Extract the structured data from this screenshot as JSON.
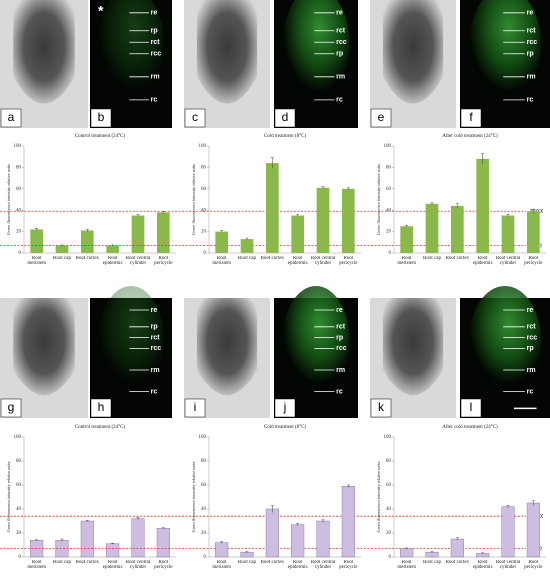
{
  "panels": [
    {
      "label": "a",
      "annotations": []
    },
    {
      "label": "b",
      "marker": "*",
      "annotations": [
        "re",
        "rp",
        "rct",
        "rcc",
        "rm",
        "rc"
      ]
    },
    {
      "label": "c",
      "annotations": []
    },
    {
      "label": "d",
      "annotations": [
        "re",
        "rct",
        "rcc",
        "rp",
        "rm",
        "rc"
      ]
    },
    {
      "label": "e",
      "annotations": []
    },
    {
      "label": "f",
      "annotations": [
        "re",
        "rct",
        "rcc",
        "rp",
        "rm",
        "rc"
      ]
    },
    {
      "label": "g",
      "annotations": []
    },
    {
      "label": "h",
      "annotations": [
        "re",
        "rp",
        "rct",
        "rcc",
        "rm",
        "rc"
      ]
    },
    {
      "label": "i",
      "annotations": []
    },
    {
      "label": "j",
      "annotations": [
        "re",
        "rct",
        "rp",
        "rcc",
        "rm",
        "rc"
      ]
    },
    {
      "label": "k",
      "annotations": []
    },
    {
      "label": "l",
      "annotations": [
        "re",
        "rct",
        "rcc",
        "rp",
        "rm",
        "rc"
      ]
    }
  ],
  "chart_data": [
    {
      "type": "bar",
      "title": "Control treatment (24°C)",
      "y_label": "Green fluorescence intensity relative units",
      "categories": [
        "Root meristem",
        "Root cap",
        "Root cortex",
        "Root epidermis",
        "Root central cylinder",
        "Root pericycle"
      ],
      "values": [
        22,
        7,
        21,
        7,
        35,
        38
      ],
      "errors": [
        1,
        0.5,
        1,
        0.5,
        1,
        1
      ],
      "color": "#8bb84a",
      "ylim": [
        0,
        100
      ],
      "yticks": [
        0,
        20,
        40,
        60,
        80,
        100
      ],
      "reference_lines": [
        {
          "label": "max",
          "value": 39
        },
        {
          "label": "min",
          "value": 7
        }
      ]
    },
    {
      "type": "bar",
      "title": "Cold treatment (8°C)",
      "y_label": "Green fluorescence intensity relative units",
      "categories": [
        "Root meristem",
        "Root cap",
        "Root cortex",
        "Root epidermis",
        "Root central cylinder",
        "Root pericycle"
      ],
      "values": [
        20,
        13,
        84,
        35,
        61,
        60
      ],
      "errors": [
        1,
        1,
        5,
        1,
        1,
        1
      ],
      "color": "#8bb84a",
      "ylim": [
        0,
        100
      ],
      "yticks": [
        0,
        20,
        40,
        60,
        80,
        100
      ]
    },
    {
      "type": "bar",
      "title": "After cold treatment (24°C)",
      "y_label": "Green fluorescence intensity relative units",
      "categories": [
        "Root meristem",
        "Root cap",
        "Root cortex",
        "Root epidermis",
        "Root central cylinder",
        "Root pericycle"
      ],
      "values": [
        25,
        46,
        44,
        88,
        35,
        39
      ],
      "errors": [
        1,
        1,
        2,
        5,
        1,
        2
      ],
      "color": "#8bb84a",
      "ylim": [
        0,
        100
      ],
      "yticks": [
        0,
        20,
        40,
        60,
        80,
        100
      ]
    },
    {
      "type": "bar",
      "title": "Control treatment (24°C)",
      "y_label": "Green fluorescence intensity relative units",
      "categories": [
        "Root meristem",
        "Root cap",
        "Root cortex",
        "Root epidermis",
        "Root central cylinder",
        "Root pericycle"
      ],
      "values": [
        14,
        14,
        30,
        11,
        32,
        24
      ],
      "errors": [
        0.5,
        1,
        0.5,
        0.5,
        1,
        0.5
      ],
      "color": "#cdbde0",
      "ylim": [
        0,
        100
      ],
      "yticks": [
        0,
        20,
        40,
        60,
        80,
        100
      ],
      "reference_lines": [
        {
          "label": "max",
          "value": 34
        },
        {
          "label": "min",
          "value": 7
        }
      ]
    },
    {
      "type": "bar",
      "title": "Cold treatment (8°C)",
      "y_label": "Green fluorescence intensity relative units",
      "categories": [
        "Root meristem",
        "Root cap",
        "Root cortex",
        "Root epidermis",
        "Root central cylinder",
        "Root pericycle"
      ],
      "values": [
        12,
        4,
        40,
        27,
        30,
        59
      ],
      "errors": [
        1,
        0.5,
        3,
        1,
        1,
        1
      ],
      "color": "#cdbde0",
      "ylim": [
        0,
        100
      ],
      "yticks": [
        0,
        20,
        40,
        60,
        80,
        100
      ]
    },
    {
      "type": "bar",
      "title": "After cold treatment (24°C)",
      "y_label": "Green fluorescence intensity relative units",
      "categories": [
        "Root meristem",
        "Root cap",
        "Root cortex",
        "Root epidermis",
        "Root central cylinder",
        "Root pericycle"
      ],
      "values": [
        7,
        4,
        15,
        3,
        42,
        45
      ],
      "errors": [
        0.5,
        0.5,
        1,
        0.5,
        1,
        2
      ],
      "color": "#cdbde0",
      "ylim": [
        0,
        100
      ],
      "yticks": [
        0,
        20,
        40,
        60,
        80,
        100
      ]
    }
  ]
}
